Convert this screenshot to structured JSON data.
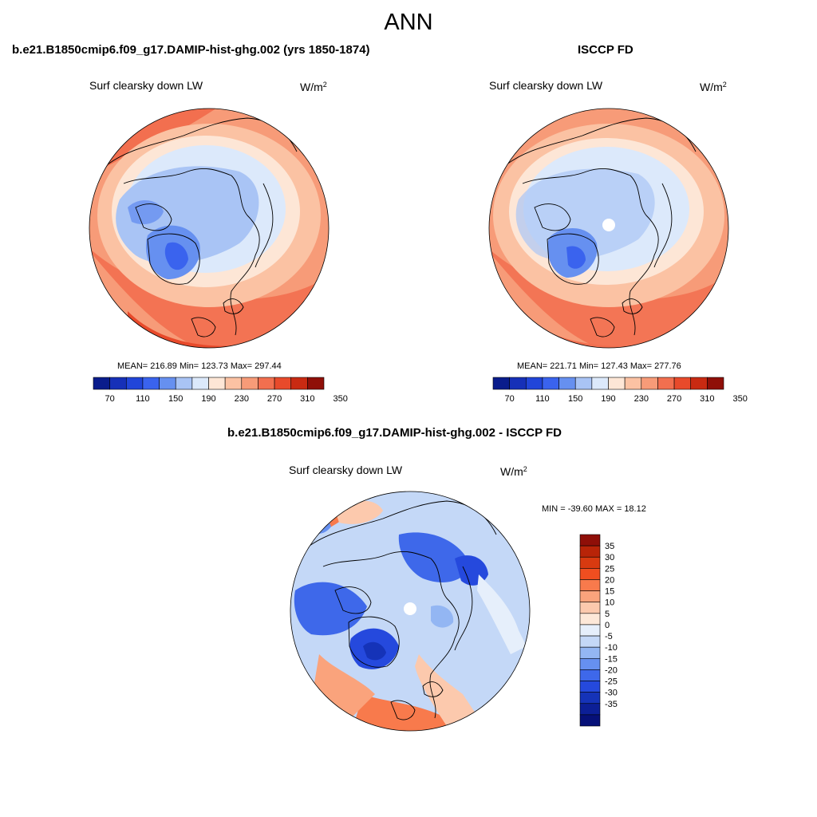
{
  "page": {
    "title": "ANN"
  },
  "panels": [
    {
      "id": "model",
      "title": "b.e21.B1850cmip6.f09_g17.DAMIP-hist-ghg.002 (yrs 1850-1874)",
      "variable": "Surf clearsky down LW",
      "units_base": "W/m",
      "units_exp": "2",
      "stats_text": "MEAN= 216.89  Min= 123.73  Max= 297.44",
      "stats": {
        "mean": 216.89,
        "min": 123.73,
        "max": 297.44
      },
      "colorbar": {
        "orientation": "horizontal",
        "colors": [
          "#0a1c8c",
          "#1630b8",
          "#2145d9",
          "#3a63ee",
          "#6690f0",
          "#a9c4f5",
          "#dce9fb",
          "#fde6d6",
          "#fbc2a3",
          "#f79b78",
          "#f26f4f",
          "#e84a2b",
          "#c92a12",
          "#8f0f08"
        ],
        "tick_labels": [
          "70",
          "110",
          "150",
          "190",
          "230",
          "270",
          "310",
          "350"
        ]
      }
    },
    {
      "id": "obs",
      "title": "ISCCP FD",
      "variable": "Surf clearsky down LW",
      "units_base": "W/m",
      "units_exp": "2",
      "stats_text": "MEAN= 221.71  Min= 127.43  Max= 277.76",
      "stats": {
        "mean": 221.71,
        "min": 127.43,
        "max": 277.76
      },
      "colorbar": {
        "orientation": "horizontal",
        "colors": [
          "#0a1c8c",
          "#1630b8",
          "#2145d9",
          "#3a63ee",
          "#6690f0",
          "#a9c4f5",
          "#dce9fb",
          "#fde6d6",
          "#fbc2a3",
          "#f79b78",
          "#f26f4f",
          "#e84a2b",
          "#c92a12",
          "#8f0f08"
        ],
        "tick_labels": [
          "70",
          "110",
          "150",
          "190",
          "230",
          "270",
          "310",
          "350"
        ]
      }
    },
    {
      "id": "diff",
      "title": "b.e21.B1850cmip6.f09_g17.DAMIP-hist-ghg.002 - ISCCP FD",
      "variable": "Surf clearsky down LW",
      "units_base": "W/m",
      "units_exp": "2",
      "stats_text": "MIN = -39.60 MAX =  18.12",
      "stats": {
        "min": -39.6,
        "max": 18.12
      },
      "colorbar": {
        "orientation": "vertical",
        "colors": [
          "#8f0f08",
          "#b82408",
          "#d83a10",
          "#f04e20",
          "#f87a4c",
          "#faa37c",
          "#fcc9ad",
          "#fde8d8",
          "#e6effb",
          "#c4d8f7",
          "#93b6f3",
          "#6690f0",
          "#3e68ea",
          "#2549dd",
          "#1533b8",
          "#0c1f96",
          "#061078"
        ],
        "tick_labels": [
          "35",
          "30",
          "25",
          "20",
          "15",
          "10",
          "5",
          "0",
          "-5",
          "-10",
          "-15",
          "-20",
          "-25",
          "-30",
          "-35"
        ]
      }
    }
  ]
}
